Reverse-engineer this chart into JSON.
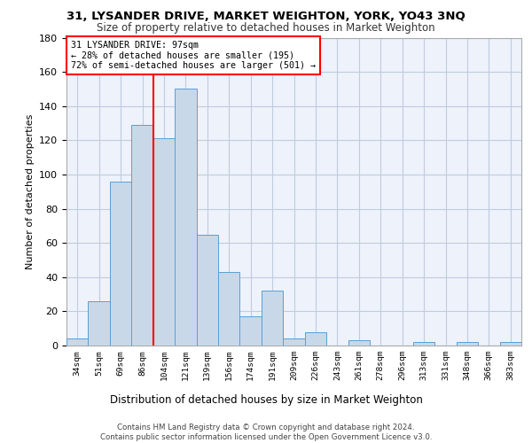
{
  "title1": "31, LYSANDER DRIVE, MARKET WEIGHTON, YORK, YO43 3NQ",
  "title2": "Size of property relative to detached houses in Market Weighton",
  "xlabel": "Distribution of detached houses by size in Market Weighton",
  "ylabel": "Number of detached properties",
  "categories": [
    "34sqm",
    "51sqm",
    "69sqm",
    "86sqm",
    "104sqm",
    "121sqm",
    "139sqm",
    "156sqm",
    "174sqm",
    "191sqm",
    "209sqm",
    "226sqm",
    "243sqm",
    "261sqm",
    "278sqm",
    "296sqm",
    "313sqm",
    "331sqm",
    "348sqm",
    "366sqm",
    "383sqm"
  ],
  "values": [
    4,
    26,
    96,
    129,
    121,
    150,
    65,
    43,
    17,
    32,
    4,
    8,
    0,
    3,
    0,
    0,
    2,
    0,
    2,
    0,
    2
  ],
  "bar_color": "#c8d8e8",
  "bar_edge_color": "#5a9fd4",
  "vline_color": "red",
  "vline_x": 3.5,
  "annotation_text": "31 LYSANDER DRIVE: 97sqm\n← 28% of detached houses are smaller (195)\n72% of semi-detached houses are larger (501) →",
  "annotation_box_color": "white",
  "annotation_box_edge": "red",
  "ylim": [
    0,
    180
  ],
  "yticks": [
    0,
    20,
    40,
    60,
    80,
    100,
    120,
    140,
    160,
    180
  ],
  "footer": "Contains HM Land Registry data © Crown copyright and database right 2024.\nContains public sector information licensed under the Open Government Licence v3.0.",
  "bg_color": "#eef2fa",
  "grid_color": "#c0cce0"
}
